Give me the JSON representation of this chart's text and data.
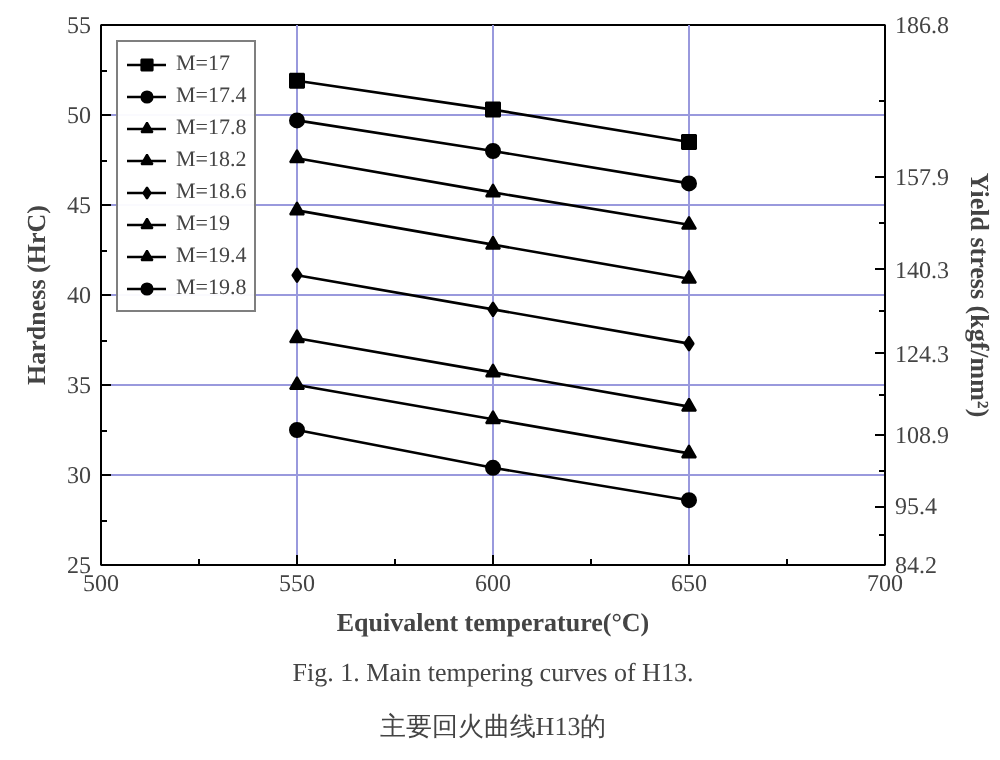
{
  "chart_data": {
    "type": "line",
    "xlabel": "Equivalent temperature(°C)",
    "ylabel": "Hardness (HrC)",
    "y2label": "Yield stress (kgf/mm²)",
    "x": [
      550,
      600,
      650
    ],
    "series": [
      {
        "name": "M=17",
        "color": "#000000",
        "marker": "square",
        "values": [
          51.9,
          50.3,
          48.5
        ]
      },
      {
        "name": "M=17.4",
        "color": "#000000",
        "marker": "circle",
        "values": [
          49.7,
          48.0,
          46.2
        ]
      },
      {
        "name": "M=17.8",
        "color": "#000000",
        "marker": "triangle",
        "values": [
          47.6,
          45.7,
          43.9
        ]
      },
      {
        "name": "M=18.2",
        "color": "#000000",
        "marker": "triangle",
        "values": [
          44.7,
          42.8,
          40.9
        ]
      },
      {
        "name": "M=18.6",
        "color": "#000000",
        "marker": "diamond",
        "values": [
          41.1,
          39.2,
          37.3
        ]
      },
      {
        "name": "M=19",
        "color": "#000000",
        "marker": "triangle",
        "values": [
          37.6,
          35.7,
          33.8
        ]
      },
      {
        "name": "M=19.4",
        "color": "#000000",
        "marker": "triangle",
        "values": [
          35.0,
          33.1,
          31.2
        ]
      },
      {
        "name": "M=19.8",
        "color": "#000000",
        "marker": "circle",
        "values": [
          32.5,
          30.4,
          28.6
        ]
      }
    ],
    "xlim": [
      500,
      700
    ],
    "xticks": [
      500,
      550,
      600,
      650,
      700
    ],
    "ylim": [
      25,
      55
    ],
    "yticks": [
      25,
      30,
      35,
      40,
      45,
      50,
      55
    ],
    "y2lim": [
      84.2,
      186.8
    ],
    "y2ticks": [
      84.2,
      95.4,
      108.9,
      124.3,
      140.3,
      157.9,
      186.8
    ],
    "grid": true,
    "legend": "top left",
    "line_style": "solid",
    "annotations": [
      "Fig. 1. Main tempering curves of H13.",
      "主要回火曲线H13的"
    ]
  }
}
